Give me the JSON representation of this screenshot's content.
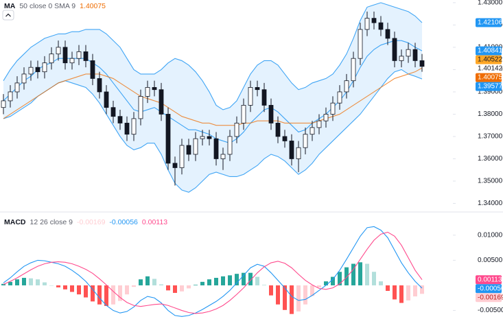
{
  "chart_data": [
    {
      "type": "candlestick",
      "legend_title": "MA",
      "legend_params": "50 close 0 SMA 9",
      "up_color": "#ffffff",
      "down_color": "#131722",
      "wick_color": "#131722",
      "open": [
        1.383,
        1.386,
        1.39,
        1.394,
        1.398,
        1.401,
        1.399,
        1.403,
        1.407,
        1.41,
        1.403,
        1.405,
        1.408,
        1.404,
        1.396,
        1.39,
        1.383,
        1.379,
        1.376,
        1.371,
        1.378,
        1.388,
        1.392,
        1.391,
        1.38,
        1.358,
        1.356,
        1.366,
        1.362,
        1.369,
        1.37,
        1.369,
        1.36,
        1.362,
        1.37,
        1.376,
        1.384,
        1.392,
        1.391,
        1.384,
        1.376,
        1.37,
        1.368,
        1.36,
        1.365,
        1.371,
        1.374,
        1.377,
        1.38,
        1.385,
        1.39,
        1.395,
        1.405,
        1.418,
        1.423,
        1.421,
        1.418,
        1.414,
        1.404,
        1.406,
        1.409,
        1.404
      ],
      "high": [
        1.389,
        1.393,
        1.397,
        1.401,
        1.404,
        1.404,
        1.406,
        1.41,
        1.413,
        1.413,
        1.408,
        1.411,
        1.411,
        1.407,
        1.399,
        1.393,
        1.386,
        1.382,
        1.379,
        1.381,
        1.391,
        1.395,
        1.395,
        1.394,
        1.383,
        1.361,
        1.369,
        1.369,
        1.372,
        1.373,
        1.373,
        1.372,
        1.365,
        1.373,
        1.379,
        1.387,
        1.395,
        1.395,
        1.394,
        1.387,
        1.379,
        1.373,
        1.371,
        1.368,
        1.374,
        1.377,
        1.38,
        1.383,
        1.388,
        1.393,
        1.398,
        1.408,
        1.421,
        1.426,
        1.426,
        1.424,
        1.421,
        1.417,
        1.409,
        1.412,
        1.412,
        1.407
      ],
      "low": [
        1.38,
        1.383,
        1.387,
        1.391,
        1.395,
        1.396,
        1.396,
        1.4,
        1.404,
        1.4,
        1.4,
        1.402,
        1.401,
        1.393,
        1.387,
        1.38,
        1.376,
        1.373,
        1.368,
        1.368,
        1.375,
        1.385,
        1.388,
        1.377,
        1.355,
        1.348,
        1.353,
        1.359,
        1.359,
        1.366,
        1.366,
        1.357,
        1.355,
        1.359,
        1.367,
        1.373,
        1.381,
        1.388,
        1.381,
        1.373,
        1.367,
        1.365,
        1.357,
        1.354,
        1.362,
        1.368,
        1.371,
        1.374,
        1.377,
        1.382,
        1.387,
        1.392,
        1.402,
        1.415,
        1.418,
        1.415,
        1.411,
        1.401,
        1.401,
        1.403,
        1.401,
        1.399
      ],
      "close": [
        1.386,
        1.39,
        1.394,
        1.398,
        1.401,
        1.399,
        1.403,
        1.407,
        1.41,
        1.403,
        1.405,
        1.408,
        1.404,
        1.396,
        1.39,
        1.383,
        1.379,
        1.376,
        1.371,
        1.378,
        1.388,
        1.392,
        1.391,
        1.38,
        1.358,
        1.356,
        1.366,
        1.362,
        1.369,
        1.37,
        1.369,
        1.36,
        1.362,
        1.37,
        1.376,
        1.384,
        1.392,
        1.391,
        1.384,
        1.376,
        1.37,
        1.368,
        1.36,
        1.365,
        1.371,
        1.374,
        1.377,
        1.38,
        1.385,
        1.39,
        1.395,
        1.405,
        1.418,
        1.423,
        1.421,
        1.418,
        1.414,
        1.404,
        1.406,
        1.409,
        1.404,
        1.40142
      ],
      "series": [
        {
          "color": "#2196f3",
          "values": [
            1.395,
            1.4,
            1.404,
            1.407,
            1.41,
            1.412,
            1.414,
            1.415,
            1.416,
            1.416,
            1.417,
            1.417,
            1.418,
            1.418,
            1.418,
            1.416,
            1.413,
            1.41,
            1.405,
            1.4,
            1.398,
            1.398,
            1.398,
            1.4,
            1.403,
            1.405,
            1.404,
            1.402,
            1.399,
            1.395,
            1.39,
            1.384,
            1.382,
            1.383,
            1.386,
            1.392,
            1.398,
            1.402,
            1.404,
            1.404,
            1.402,
            1.398,
            1.394,
            1.391,
            1.392,
            1.394,
            1.395,
            1.396,
            1.398,
            1.402,
            1.407,
            1.414,
            1.422,
            1.428,
            1.429,
            1.43,
            1.429,
            1.428,
            1.427,
            1.426,
            1.424,
            1.42106
          ]
        },
        {
          "color": "#2196f3",
          "values": [
            1.378,
            1.379,
            1.381,
            1.383,
            1.385,
            1.388,
            1.39,
            1.392,
            1.394,
            1.395,
            1.394,
            1.393,
            1.392,
            1.389,
            1.385,
            1.38,
            1.375,
            1.37,
            1.366,
            1.364,
            1.365,
            1.367,
            1.367,
            1.362,
            1.355,
            1.349,
            1.346,
            1.345,
            1.347,
            1.35,
            1.353,
            1.354,
            1.353,
            1.352,
            1.352,
            1.353,
            1.355,
            1.357,
            1.36,
            1.362,
            1.361,
            1.359,
            1.356,
            1.353,
            1.355,
            1.358,
            1.362,
            1.365,
            1.368,
            1.371,
            1.374,
            1.377,
            1.38,
            1.384,
            1.388,
            1.392,
            1.396,
            1.399,
            1.4,
            1.398,
            1.397,
            1.39577
          ]
        },
        {
          "color": "#2196f3",
          "values": [
            1.386,
            1.389,
            1.392,
            1.395,
            1.397,
            1.4,
            1.402,
            1.403,
            1.405,
            1.405,
            1.405,
            1.405,
            1.405,
            1.403,
            1.401,
            1.398,
            1.394,
            1.39,
            1.386,
            1.382,
            1.381,
            1.382,
            1.383,
            1.381,
            1.379,
            1.377,
            1.375,
            1.373,
            1.373,
            1.372,
            1.371,
            1.369,
            1.368,
            1.367,
            1.369,
            1.372,
            1.376,
            1.379,
            1.382,
            1.383,
            1.381,
            1.378,
            1.375,
            1.372,
            1.373,
            1.376,
            1.378,
            1.38,
            1.383,
            1.386,
            1.39,
            1.395,
            1.401,
            1.406,
            1.409,
            1.411,
            1.412,
            1.413,
            1.413,
            1.412,
            1.41,
            1.40841
          ]
        },
        {
          "color": "#ef6c00",
          "values": [
            1.378,
            1.38,
            1.382,
            1.384,
            1.386,
            1.388,
            1.39,
            1.392,
            1.394,
            1.395,
            1.396,
            1.397,
            1.398,
            1.398,
            1.398,
            1.397,
            1.396,
            1.394,
            1.392,
            1.39,
            1.388,
            1.387,
            1.386,
            1.385,
            1.383,
            1.381,
            1.379,
            1.378,
            1.377,
            1.376,
            1.376,
            1.375,
            1.375,
            1.375,
            1.375,
            1.376,
            1.376,
            1.377,
            1.377,
            1.377,
            1.377,
            1.376,
            1.376,
            1.376,
            1.376,
            1.376,
            1.377,
            1.378,
            1.379,
            1.38,
            1.382,
            1.384,
            1.386,
            1.388,
            1.39,
            1.392,
            1.394,
            1.396,
            1.397,
            1.398,
            1.399,
            1.40075
          ]
        }
      ],
      "sma_value": 1.40522,
      "sma_color": "#ffa726",
      "ylim": [
        1.3383,
        1.4312
      ],
      "yticks": [
        {
          "value": 1.34,
          "label": "1.34000"
        },
        {
          "value": 1.35,
          "label": "1.35000"
        },
        {
          "value": 1.36,
          "label": "1.36000"
        },
        {
          "value": 1.37,
          "label": "1.37000"
        },
        {
          "value": 1.38,
          "label": "1.38000"
        },
        {
          "value": 1.39,
          "label": "1.39000"
        },
        {
          "value": 1.4,
          "label": "1.40000"
        },
        {
          "value": 1.41,
          "label": "1.41000"
        },
        {
          "value": 1.42,
          "label": "1.42000"
        },
        {
          "value": 1.43,
          "label": "1.43000"
        }
      ],
      "grid": false
    },
    {
      "type": "macd",
      "legend_title": "MACD",
      "legend_params": "12 26 close 9",
      "series": [
        {
          "colors": [
            "#26a69a",
            "#b2dfdb",
            "#ffcdd2",
            "#ff5252"
          ],
          "values": [
            0.0003,
            0.0007,
            0.0012,
            0.0015,
            0.0014,
            0.0012,
            0.0006,
            0,
            -0.0004,
            -0.0008,
            -0.0013,
            -0.0018,
            -0.0024,
            -0.0032,
            -0.0038,
            -0.0041,
            -0.0038,
            -0.0031,
            -0.0018,
            -0.0003,
            0.0012,
            0.0018,
            0.0013,
            0.0002,
            -0.001,
            -0.0015,
            -0.0012,
            -0.0006,
            0.0001,
            0.0007,
            0.0012,
            0.0015,
            0.0018,
            0.002,
            0.0023,
            0.0025,
            0.0025,
            0.0017,
            0.0001,
            -0.002,
            -0.0038,
            -0.0049,
            -0.0057,
            -0.0052,
            -0.0038,
            -0.0021,
            -0.0004,
            0.0008,
            0.0017,
            0.0027,
            0.0036,
            0.0043,
            0.0046,
            0.0043,
            0.0027,
            0.0008,
            -0.0011,
            -0.0028,
            -0.0035,
            -0.003,
            -0.0022,
            -0.00169
          ]
        },
        {
          "color": "#2196f3",
          "values": [
            0.0005,
            0.0015,
            0.0027,
            0.0038,
            0.0045,
            0.005,
            0.0049,
            0.0046,
            0.0043,
            0.0038,
            0.003,
            0.002,
            0.0008,
            -0.0008,
            -0.0025,
            -0.004,
            -0.005,
            -0.0055,
            -0.0052,
            -0.0043,
            -0.003,
            -0.0022,
            -0.0025,
            -0.0035,
            -0.005,
            -0.006,
            -0.0062,
            -0.006,
            -0.0055,
            -0.0048,
            -0.004,
            -0.0032,
            -0.0022,
            -0.001,
            0.0005,
            0.002,
            0.0035,
            0.0042,
            0.0038,
            0.0025,
            0.001,
            -0.0005,
            -0.0022,
            -0.003,
            -0.0028,
            -0.002,
            -0.001,
            0,
            0.0012,
            0.003,
            0.0052,
            0.0075,
            0.0098,
            0.0115,
            0.0117,
            0.011,
            0.0095,
            0.007,
            0.0045,
            0.0025,
            0.0008,
            -0.00056
          ]
        },
        {
          "color": "#ff4a8d",
          "values": [
            0.0002,
            0.0008,
            0.0015,
            0.0023,
            0.0031,
            0.0038,
            0.0043,
            0.0046,
            0.0047,
            0.0046,
            0.0043,
            0.0038,
            0.0032,
            0.0024,
            0.0013,
            0.0001,
            -0.0012,
            -0.0024,
            -0.0034,
            -0.004,
            -0.0042,
            -0.004,
            -0.0038,
            -0.0037,
            -0.004,
            -0.0045,
            -0.005,
            -0.0054,
            -0.0056,
            -0.0055,
            -0.0052,
            -0.0047,
            -0.004,
            -0.003,
            -0.0018,
            -0.0005,
            0.001,
            0.0025,
            0.0037,
            0.0045,
            0.0048,
            0.0044,
            0.0035,
            0.0022,
            0.001,
            0.0001,
            -0.0006,
            -0.0008,
            -0.0005,
            0.0003,
            0.0016,
            0.0032,
            0.0052,
            0.0072,
            0.009,
            0.0102,
            0.0106,
            0.0098,
            0.008,
            0.0055,
            0.003,
            0.00113
          ]
        }
      ],
      "ylim": [
        -0.0067,
        0.0138
      ],
      "yticks": [
        {
          "value": -0.005,
          "label": "-0.00500"
        },
        {
          "value": 0.005,
          "label": "0.00500"
        },
        {
          "value": 0.01,
          "label": "0.01000"
        }
      ],
      "grid": false
    }
  ]
}
